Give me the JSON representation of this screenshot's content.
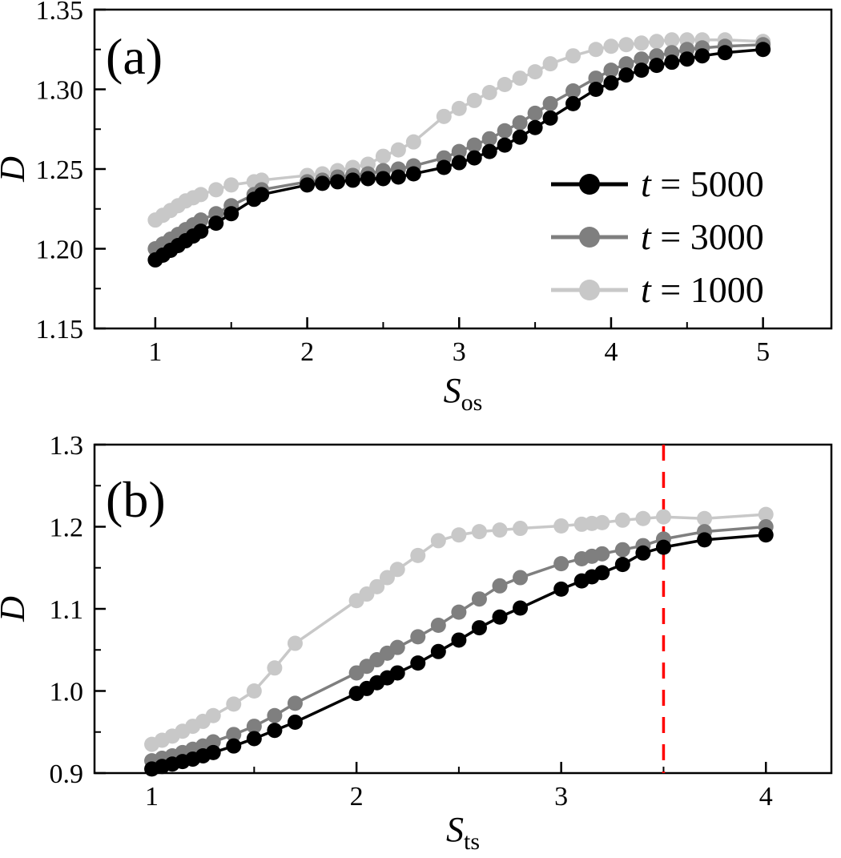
{
  "figure": {
    "background": "#ffffff",
    "frame_color": "#000000"
  },
  "chart_data": [
    {
      "id": "a",
      "type": "line",
      "panel_label": "(a)",
      "xlabel_main": "S",
      "xlabel_sub": "os",
      "ylabel": "D",
      "xlim": [
        0.6,
        5.45
      ],
      "ylim": [
        1.15,
        1.35
      ],
      "grid": false,
      "legend": true,
      "legend_position": "right-middle",
      "xticks": {
        "major": [
          {
            "v": 1,
            "label": "1"
          },
          {
            "v": 2,
            "label": "2"
          },
          {
            "v": 3,
            "label": "3"
          },
          {
            "v": 4,
            "label": "4"
          },
          {
            "v": 5,
            "label": "5"
          }
        ],
        "minor": [
          1.5,
          2.5,
          3.5,
          4.5
        ]
      },
      "yticks": {
        "major": [
          {
            "v": 1.15,
            "label": "1.15"
          },
          {
            "v": 1.2,
            "label": "1.20"
          },
          {
            "v": 1.25,
            "label": "1.25"
          },
          {
            "v": 1.3,
            "label": "1.30"
          },
          {
            "v": 1.35,
            "label": "1.35"
          }
        ],
        "minor": [
          1.175,
          1.225,
          1.275,
          1.325
        ]
      },
      "series": [
        {
          "name": "t = 5000",
          "color": "#000000",
          "x": [
            1.0,
            1.05,
            1.1,
            1.15,
            1.2,
            1.25,
            1.3,
            1.4,
            1.5,
            1.65,
            1.7,
            2.0,
            2.1,
            2.2,
            2.3,
            2.4,
            2.5,
            2.6,
            2.7,
            2.9,
            3.0,
            3.1,
            3.2,
            3.3,
            3.4,
            3.5,
            3.6,
            3.75,
            3.9,
            4.0,
            4.1,
            4.2,
            4.3,
            4.4,
            4.5,
            4.6,
            4.75,
            5.0
          ],
          "y": [
            1.193,
            1.196,
            1.199,
            1.202,
            1.205,
            1.208,
            1.211,
            1.216,
            1.222,
            1.231,
            1.234,
            1.24,
            1.241,
            1.242,
            1.243,
            1.244,
            1.244,
            1.245,
            1.247,
            1.251,
            1.254,
            1.257,
            1.261,
            1.265,
            1.27,
            1.276,
            1.282,
            1.291,
            1.3,
            1.304,
            1.309,
            1.312,
            1.315,
            1.317,
            1.319,
            1.321,
            1.323,
            1.325
          ]
        },
        {
          "name": "t = 3000",
          "color": "#7f7f7f",
          "x": [
            1.0,
            1.05,
            1.1,
            1.15,
            1.2,
            1.25,
            1.3,
            1.4,
            1.5,
            1.65,
            1.7,
            2.0,
            2.1,
            2.2,
            2.3,
            2.4,
            2.5,
            2.6,
            2.7,
            2.9,
            3.0,
            3.1,
            3.2,
            3.3,
            3.4,
            3.5,
            3.6,
            3.75,
            3.9,
            4.0,
            4.1,
            4.2,
            4.3,
            4.4,
            4.5,
            4.6,
            4.75,
            5.0
          ],
          "y": [
            1.2,
            1.203,
            1.206,
            1.209,
            1.212,
            1.215,
            1.218,
            1.222,
            1.227,
            1.234,
            1.237,
            1.242,
            1.243,
            1.245,
            1.246,
            1.247,
            1.249,
            1.25,
            1.252,
            1.257,
            1.261,
            1.265,
            1.269,
            1.274,
            1.279,
            1.285,
            1.291,
            1.299,
            1.307,
            1.312,
            1.316,
            1.319,
            1.321,
            1.323,
            1.325,
            1.326,
            1.327,
            1.328
          ]
        },
        {
          "name": "t = 1000",
          "color": "#c8c8c8",
          "x": [
            1.0,
            1.05,
            1.1,
            1.15,
            1.2,
            1.25,
            1.3,
            1.4,
            1.5,
            1.65,
            1.7,
            2.0,
            2.1,
            2.2,
            2.3,
            2.4,
            2.5,
            2.6,
            2.7,
            2.9,
            3.0,
            3.1,
            3.2,
            3.3,
            3.4,
            3.5,
            3.6,
            3.75,
            3.9,
            4.0,
            4.1,
            4.2,
            4.3,
            4.4,
            4.5,
            4.6,
            4.75,
            5.0
          ],
          "y": [
            1.218,
            1.221,
            1.224,
            1.227,
            1.23,
            1.232,
            1.234,
            1.237,
            1.24,
            1.242,
            1.243,
            1.246,
            1.247,
            1.249,
            1.251,
            1.253,
            1.258,
            1.262,
            1.267,
            1.283,
            1.288,
            1.293,
            1.298,
            1.303,
            1.307,
            1.311,
            1.316,
            1.321,
            1.325,
            1.327,
            1.328,
            1.329,
            1.33,
            1.331,
            1.331,
            1.331,
            1.331,
            1.33
          ]
        }
      ]
    },
    {
      "id": "b",
      "type": "line",
      "panel_label": "(b)",
      "xlabel_main": "S",
      "xlabel_sub": "ts",
      "ylabel": "D",
      "xlim": [
        0.72,
        4.32
      ],
      "ylim": [
        0.9,
        1.3
      ],
      "grid": false,
      "legend": false,
      "vline": {
        "x": 3.5,
        "color": "#ff0000",
        "style": "dashed"
      },
      "xticks": {
        "major": [
          {
            "v": 1,
            "label": "1"
          },
          {
            "v": 2,
            "label": "2"
          },
          {
            "v": 3,
            "label": "3"
          },
          {
            "v": 4,
            "label": "4"
          }
        ],
        "minor": [
          1.5,
          2.5,
          3.5
        ]
      },
      "yticks": {
        "major": [
          {
            "v": 0.9,
            "label": "0.9"
          },
          {
            "v": 1.0,
            "label": "1.0"
          },
          {
            "v": 1.1,
            "label": "1.1"
          },
          {
            "v": 1.2,
            "label": "1.2"
          },
          {
            "v": 1.3,
            "label": "1.3"
          }
        ],
        "minor": [
          0.95,
          1.05,
          1.15,
          1.25
        ]
      },
      "series": [
        {
          "name": "t = 5000",
          "color": "#000000",
          "x": [
            1.0,
            1.05,
            1.1,
            1.15,
            1.2,
            1.25,
            1.3,
            1.4,
            1.5,
            1.6,
            1.7,
            2.0,
            2.05,
            2.1,
            2.15,
            2.2,
            2.3,
            2.4,
            2.5,
            2.6,
            2.7,
            2.8,
            3.0,
            3.1,
            3.15,
            3.2,
            3.3,
            3.4,
            3.5,
            3.7,
            4.0
          ],
          "y": [
            0.905,
            0.908,
            0.911,
            0.914,
            0.917,
            0.921,
            0.925,
            0.933,
            0.942,
            0.952,
            0.962,
            0.997,
            1.003,
            1.01,
            1.016,
            1.022,
            1.034,
            1.048,
            1.062,
            1.077,
            1.09,
            1.101,
            1.124,
            1.134,
            1.139,
            1.144,
            1.154,
            1.168,
            1.175,
            1.184,
            1.19
          ]
        },
        {
          "name": "t = 3000",
          "color": "#7f7f7f",
          "x": [
            1.0,
            1.05,
            1.1,
            1.15,
            1.2,
            1.25,
            1.3,
            1.4,
            1.5,
            1.6,
            1.7,
            2.0,
            2.05,
            2.1,
            2.15,
            2.2,
            2.3,
            2.4,
            2.5,
            2.6,
            2.7,
            2.8,
            3.0,
            3.1,
            3.15,
            3.2,
            3.3,
            3.4,
            3.5,
            3.7,
            4.0
          ],
          "y": [
            0.915,
            0.918,
            0.921,
            0.925,
            0.929,
            0.933,
            0.938,
            0.947,
            0.957,
            0.97,
            0.985,
            1.022,
            1.03,
            1.038,
            1.046,
            1.053,
            1.066,
            1.08,
            1.096,
            1.112,
            1.128,
            1.138,
            1.155,
            1.161,
            1.164,
            1.167,
            1.172,
            1.177,
            1.185,
            1.194,
            1.2
          ]
        },
        {
          "name": "t = 1000",
          "color": "#c8c8c8",
          "x": [
            1.0,
            1.05,
            1.1,
            1.15,
            1.2,
            1.25,
            1.3,
            1.4,
            1.5,
            1.6,
            1.7,
            2.0,
            2.05,
            2.1,
            2.15,
            2.2,
            2.3,
            2.4,
            2.5,
            2.6,
            2.7,
            2.8,
            3.0,
            3.1,
            3.15,
            3.2,
            3.3,
            3.4,
            3.5,
            3.7,
            4.0
          ],
          "y": [
            0.935,
            0.94,
            0.945,
            0.951,
            0.957,
            0.963,
            0.97,
            0.984,
            1.0,
            1.028,
            1.058,
            1.11,
            1.118,
            1.127,
            1.138,
            1.148,
            1.165,
            1.183,
            1.19,
            1.194,
            1.196,
            1.198,
            1.201,
            1.203,
            1.204,
            1.205,
            1.208,
            1.21,
            1.212,
            1.21,
            1.215
          ]
        }
      ]
    }
  ]
}
